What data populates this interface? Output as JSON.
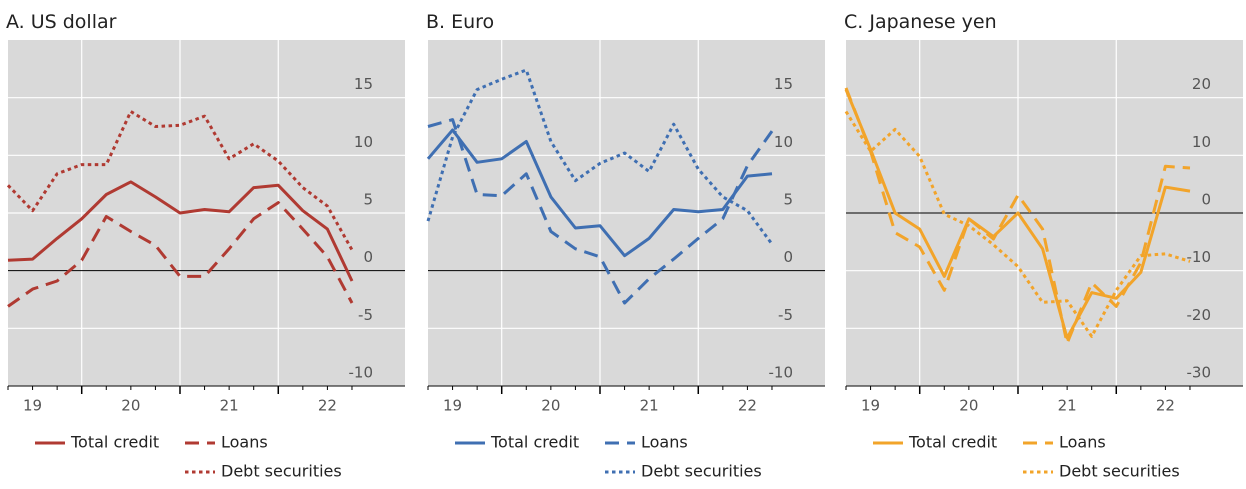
{
  "chart_data": [
    {
      "type": "line",
      "title": "A. US dollar",
      "categories": [
        null,
        "19",
        null,
        null,
        null,
        "20",
        null,
        null,
        null,
        "21",
        null,
        null,
        null,
        "22",
        null
      ],
      "ylim": [
        -10,
        20
      ],
      "yticks": [
        -10,
        -5,
        0,
        5,
        10,
        15
      ],
      "grid": true,
      "series": [
        {
          "name": "Total credit",
          "color": "#b03a32",
          "style": "solid",
          "values": [
            0.9,
            1.0,
            2.8,
            4.5,
            6.6,
            7.7,
            6.4,
            5.0,
            5.3,
            5.1,
            7.2,
            7.4,
            5.2,
            3.6,
            -0.9
          ]
        },
        {
          "name": "Loans",
          "color": "#b03a32",
          "style": "dashed",
          "values": [
            -3.1,
            -1.6,
            -0.9,
            0.9,
            4.7,
            3.4,
            2.2,
            -0.5,
            -0.5,
            1.9,
            4.5,
            5.9,
            3.6,
            1.2,
            -2.8
          ]
        },
        {
          "name": "Debt securities",
          "color": "#b03a32",
          "style": "dotted",
          "values": [
            7.4,
            5.2,
            8.4,
            9.2,
            9.2,
            13.8,
            12.5,
            12.6,
            13.4,
            9.7,
            11.0,
            9.5,
            7.2,
            5.6,
            1.8
          ]
        }
      ]
    },
    {
      "type": "line",
      "title": "B. Euro",
      "categories": [
        null,
        "19",
        null,
        null,
        null,
        "20",
        null,
        null,
        null,
        "21",
        null,
        null,
        null,
        "22",
        null
      ],
      "ylim": [
        -10,
        20
      ],
      "yticks": [
        -10,
        -5,
        0,
        5,
        10,
        15
      ],
      "grid": true,
      "series": [
        {
          "name": "Total credit",
          "color": "#3f6fb2",
          "style": "solid",
          "values": [
            9.7,
            12.2,
            9.4,
            9.7,
            11.2,
            6.4,
            3.7,
            3.9,
            1.3,
            2.8,
            5.3,
            5.1,
            5.3,
            8.2,
            8.4
          ]
        },
        {
          "name": "Loans",
          "color": "#3f6fb2",
          "style": "dashed",
          "values": [
            12.5,
            13.1,
            6.6,
            6.5,
            8.4,
            3.4,
            1.9,
            1.2,
            -2.8,
            -0.7,
            1.0,
            2.8,
            4.5,
            9.1,
            12.1
          ]
        },
        {
          "name": "Debt securities",
          "color": "#3f6fb2",
          "style": "dotted",
          "values": [
            4.3,
            11.6,
            15.7,
            16.6,
            17.4,
            11.2,
            7.8,
            9.3,
            10.2,
            8.6,
            12.7,
            8.8,
            6.4,
            5.2,
            2.3
          ]
        }
      ]
    },
    {
      "type": "line",
      "title": "C. Japanese yen",
      "categories": [
        null,
        "19",
        null,
        null,
        null,
        "20",
        null,
        null,
        null,
        "21",
        null,
        null,
        null,
        "22",
        null
      ],
      "ylim": [
        -30,
        30
      ],
      "yticks": [
        -30,
        -20,
        -10,
        0,
        10,
        20
      ],
      "grid": true,
      "series": [
        {
          "name": "Total credit",
          "color": "#f2a42a",
          "style": "solid",
          "values": [
            21.4,
            11.0,
            0,
            -2.8,
            -11.0,
            -1.0,
            -4.1,
            0,
            -6.2,
            -21.7,
            -13.8,
            -14.8,
            -10.3,
            4.5,
            3.8
          ]
        },
        {
          "name": "Loans",
          "color": "#f2a42a",
          "style": "dashed",
          "values": [
            21.7,
            10.7,
            -3.4,
            -5.9,
            -13.4,
            -1.0,
            -4.5,
            3.1,
            -2.8,
            -22.6,
            -12.1,
            -16.2,
            -8.6,
            8.1,
            7.8
          ]
        },
        {
          "name": "Debt securities",
          "color": "#f2a42a",
          "style": "dotted",
          "values": [
            17.6,
            10.7,
            14.5,
            9.8,
            -0.2,
            -2.2,
            -5.5,
            -9.3,
            -15.5,
            -15.2,
            -21.4,
            -13.4,
            -7.4,
            -7.1,
            -8.4
          ]
        }
      ]
    }
  ]
}
